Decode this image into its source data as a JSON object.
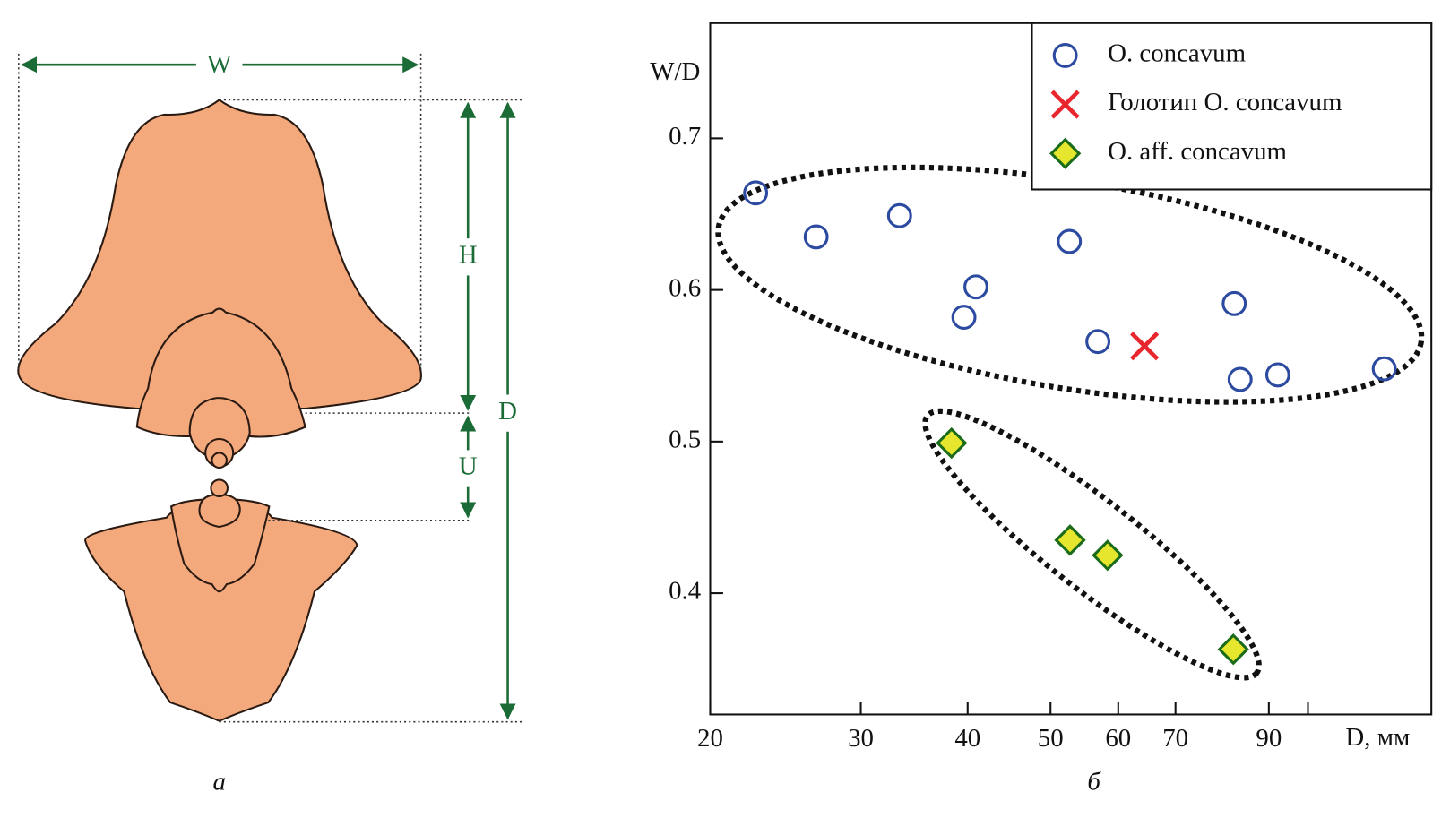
{
  "diagram": {
    "width_label": "W",
    "height_label": "H",
    "umbilicus_label": "U",
    "diameter_label": "D",
    "caption": "а"
  },
  "chart_data": {
    "type": "scatter",
    "x_label": "D, мм",
    "y_label": "W/D",
    "caption": "б",
    "xscale": "log",
    "xlim": [
      20,
      139.4
    ],
    "ylim": [
      0.32,
      0.776
    ],
    "xticks": [
      20,
      30,
      40,
      50,
      60,
      70,
      90
    ],
    "xminorticks": [
      100
    ],
    "yticks": [
      0.4,
      0.5,
      0.6,
      0.7
    ],
    "legend": "upper right",
    "series": [
      {
        "name": "O. concavum",
        "color": "#2b4aa0",
        "marker": "circle",
        "x": [
          22.6,
          26.6,
          33.3,
          52.6,
          40.9,
          39.6,
          56.8,
          82.0,
          83.3,
          92.2,
          122.8
        ],
        "values": [
          0.664,
          0.635,
          0.649,
          0.632,
          0.602,
          0.582,
          0.566,
          0.591,
          0.541,
          0.544,
          0.548
        ]
      },
      {
        "name": "Голотип O. concavum",
        "color": "#e8262d",
        "marker": "x",
        "x": [
          64.4
        ],
        "values": [
          0.563
        ]
      },
      {
        "name": "O. aff. concavum",
        "color": "#e6e62e",
        "marker": "diamond",
        "x": [
          38.3,
          52.7,
          58.3,
          81.8
        ],
        "values": [
          0.499,
          0.435,
          0.425,
          0.363
        ]
      }
    ]
  }
}
